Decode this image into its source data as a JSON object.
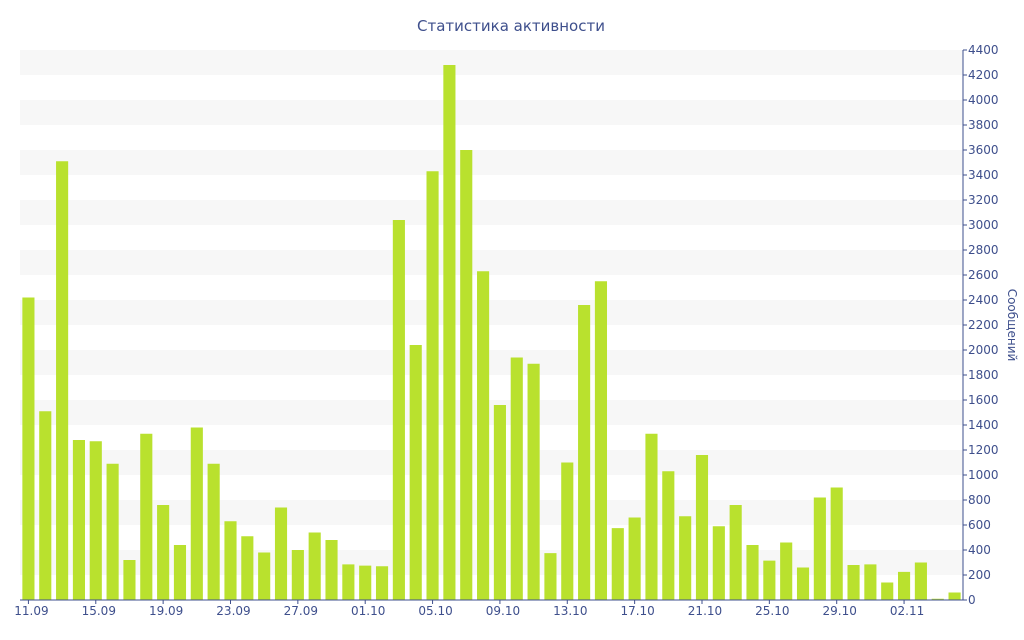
{
  "chart_data": {
    "type": "bar",
    "title": "Статистика активности",
    "ylabel": "Сообщений",
    "ylim": [
      0,
      4400
    ],
    "ytick_step": 200,
    "grid": "alternating horizontal bands",
    "y_axis_position": "right",
    "bar_color": "#b9e12e",
    "band_color": "#f7f7f7",
    "axis_color": "#3e4f8c",
    "x_tick_labels": [
      "11.09",
      "15.09",
      "19.09",
      "23.09",
      "27.09",
      "01.10",
      "05.10",
      "09.10",
      "13.10",
      "17.10",
      "21.10",
      "25.10",
      "29.10",
      "02.11"
    ],
    "x_tick_every": 4,
    "categories": [
      "11.09",
      "12.09",
      "13.09",
      "14.09",
      "15.09",
      "16.09",
      "17.09",
      "18.09",
      "19.09",
      "20.09",
      "21.09",
      "22.09",
      "23.09",
      "24.09",
      "25.09",
      "26.09",
      "27.09",
      "28.09",
      "29.09",
      "30.09",
      "01.10",
      "02.10",
      "03.10",
      "04.10",
      "05.10",
      "06.10",
      "07.10",
      "08.10",
      "09.10",
      "10.10",
      "11.10",
      "12.10",
      "13.10",
      "14.10",
      "15.10",
      "16.10",
      "17.10",
      "18.10",
      "19.10",
      "20.10",
      "21.10",
      "22.10",
      "23.10",
      "24.10",
      "25.10",
      "26.10",
      "27.10",
      "28.10",
      "29.10",
      "30.10",
      "31.10",
      "01.11",
      "02.11",
      "03.11",
      "04.11",
      "05.11"
    ],
    "values": [
      2420,
      1510,
      3510,
      1280,
      1270,
      1090,
      320,
      1330,
      760,
      440,
      1380,
      1090,
      630,
      510,
      380,
      740,
      400,
      540,
      480,
      285,
      275,
      270,
      3040,
      2040,
      3430,
      4280,
      3600,
      2630,
      1560,
      1940,
      1890,
      375,
      1100,
      2360,
      2550,
      575,
      660,
      1330,
      1030,
      670,
      1160,
      590,
      760,
      440,
      315,
      460,
      260,
      820,
      900,
      280,
      285,
      140,
      225,
      300,
      10,
      60
    ]
  }
}
